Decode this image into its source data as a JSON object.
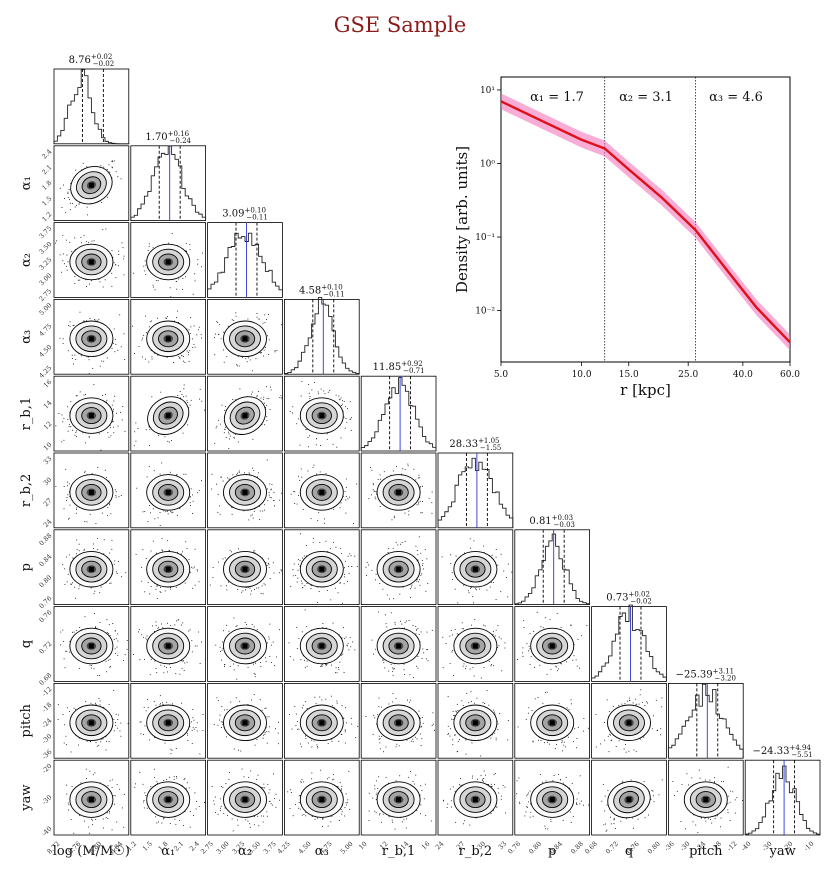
{
  "title": "GSE Sample",
  "corner": {
    "params": [
      {
        "key": "logM",
        "label": "log (M/M☉)",
        "median": 8.76,
        "plus": 0.02,
        "minus": 0.02,
        "range": [
          8.7,
          8.85
        ],
        "ticks": [
          "8.72",
          "8.76",
          "8.80",
          "8.84"
        ],
        "yticks": []
      },
      {
        "key": "a1",
        "label": "α₁",
        "median": 1.7,
        "plus": 0.16,
        "minus": 0.24,
        "range": [
          1.05,
          2.45
        ],
        "ticks": [
          "1.2",
          "1.5",
          "1.8",
          "2.1",
          "2.4"
        ],
        "yticks": [
          "2.4",
          "2.1",
          "1.8",
          "1.5",
          "1.2"
        ]
      },
      {
        "key": "a2",
        "label": "α₂",
        "median": 3.09,
        "plus": 0.1,
        "minus": 0.11,
        "range": [
          2.7,
          3.8
        ],
        "ticks": [
          "2.75",
          "3.00",
          "3.25",
          "3.50",
          "3.75"
        ],
        "yticks": [
          "3.75",
          "3.50",
          "3.25",
          "3.00",
          "2.75"
        ]
      },
      {
        "key": "a3",
        "label": "α₃",
        "median": 4.58,
        "plus": 0.1,
        "minus": 0.11,
        "range": [
          4.15,
          5.05
        ],
        "ticks": [
          "4.25",
          "4.50",
          "4.75",
          "5.00"
        ],
        "yticks": [
          "5.00",
          "4.75",
          "4.50",
          "4.25"
        ]
      },
      {
        "key": "rb1",
        "label": "r_b,1",
        "median": 11.85,
        "plus": 0.92,
        "minus": 0.71,
        "range": [
          9,
          18
        ],
        "ticks": [
          "10",
          "12",
          "14",
          "16"
        ],
        "yticks": [
          "16",
          "14",
          "12",
          "10"
        ]
      },
      {
        "key": "rb2",
        "label": "r_b,2",
        "median": 28.33,
        "plus": 1.05,
        "minus": 1.55,
        "range": [
          21,
          34
        ],
        "ticks": [
          "24",
          "27",
          "30",
          "33"
        ],
        "yticks": [
          "33",
          "30",
          "27",
          "24"
        ]
      },
      {
        "key": "p",
        "label": "p",
        "median": 0.81,
        "plus": 0.03,
        "minus": 0.03,
        "range": [
          0.74,
          0.9
        ],
        "ticks": [
          "0.76",
          "0.80",
          "0.84",
          "0.88"
        ],
        "yticks": [
          "0.88",
          "0.84",
          "0.80",
          "0.76"
        ]
      },
      {
        "key": "q",
        "label": "q",
        "median": 0.73,
        "plus": 0.02,
        "minus": 0.02,
        "range": [
          0.67,
          0.8
        ],
        "ticks": [
          "0.68",
          "0.72",
          "0.76",
          "0.80"
        ],
        "yticks": [
          "0.76",
          "0.72",
          "0.68"
        ]
      },
      {
        "key": "pitch",
        "label": "pitch",
        "median": -25.39,
        "plus": 3.11,
        "minus": 3.2,
        "range": [
          -38,
          -11
        ],
        "ticks": [
          "-36",
          "-30",
          "-24",
          "-18",
          "-12"
        ],
        "yticks": [
          "-12",
          "-18",
          "-24",
          "-30",
          "-36"
        ]
      },
      {
        "key": "yaw",
        "label": "yaw",
        "median": -24.33,
        "plus": 4.94,
        "minus": 5.51,
        "range": [
          -44,
          -8
        ],
        "ticks": [
          "-40",
          "-30",
          "-20",
          "-10"
        ],
        "yticks": [
          "-20",
          "-30",
          "-40"
        ]
      }
    ]
  },
  "chart_data": {
    "type": "line",
    "xlabel": "r [kpc]",
    "ylabel": "Density [arb. units]",
    "xscale": "log",
    "yscale": "log",
    "xlim": [
      5.0,
      60.0
    ],
    "ylim": [
      0.002,
      15
    ],
    "xticks": [
      "5.0",
      "10.0",
      "15.0",
      "25.0",
      "40.0",
      "60.0"
    ],
    "yticks": [
      "10¹",
      "10⁰",
      "10⁻¹",
      "10⁻²"
    ],
    "breaks": [
      12.2,
      26.6
    ],
    "annotations": [
      "α₁ = 1.7",
      "α₂ = 3.1",
      "α₃ = 4.6"
    ],
    "series": [
      {
        "x": [
          5.0,
          7.0,
          10.0,
          12.2,
          15.0,
          20.0,
          26.6,
          35.0,
          45.0,
          60.0
        ],
        "y": [
          7.0,
          3.9,
          2.1,
          1.6,
          0.83,
          0.34,
          0.125,
          0.035,
          0.011,
          0.0037
        ]
      }
    ],
    "color": "#e0101a",
    "band_color": "#f06ab4"
  }
}
